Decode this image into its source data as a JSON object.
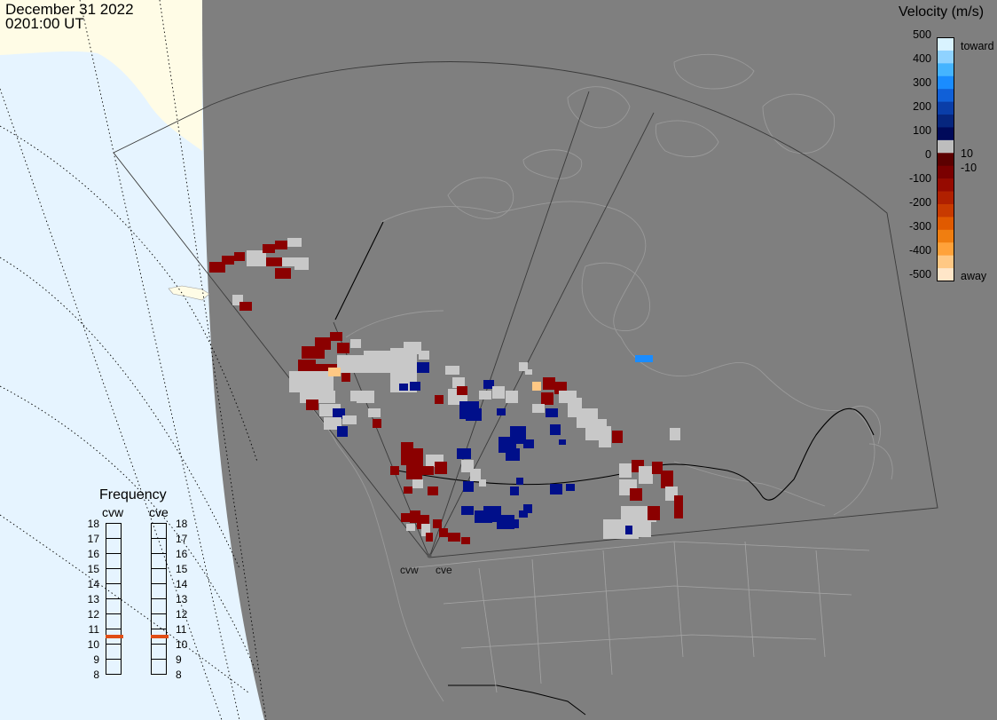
{
  "title": {
    "date": "December 31 2022",
    "time": "0201:00 UT"
  },
  "colorbar": {
    "title": "Velocity (m/s)",
    "labels": [
      "500",
      "400",
      "300",
      "200",
      "100",
      "0",
      "-100",
      "-200",
      "-300",
      "-400",
      "-500"
    ],
    "inner_pos": "10",
    "inner_neg": "-10",
    "end_top": "toward",
    "end_bottom": "away",
    "colors": [
      "#d9f3ff",
      "#8fd2ff",
      "#45b4ff",
      "#1a8cff",
      "#1060d8",
      "#0a3ea8",
      "#06267e",
      "#000a5a",
      "#bdbdbd",
      "#5c0000",
      "#7a0000",
      "#960a00",
      "#b02000",
      "#c83a00",
      "#e05a00",
      "#f07e10",
      "#ffa23a",
      "#ffc884",
      "#ffe6c8"
    ]
  },
  "frequency": {
    "title": "Frequency",
    "radars": [
      "cvw",
      "cve"
    ],
    "ticks": [
      "18",
      "17",
      "16",
      "15",
      "14",
      "13",
      "12",
      "11",
      "10",
      "9",
      "8"
    ],
    "cvw_mhz": 10.5,
    "cve_mhz": 10.5
  },
  "radar_sites": [
    "cvw",
    "cve"
  ],
  "colors": {
    "land_dark": "#7f7f7f",
    "land_light": "#fffce6",
    "ocean": "#e6f4ff",
    "accent_freq": "#e04e14",
    "scatter": "#c8c8c8",
    "away": "#8b0000",
    "toward": "#000f8a"
  }
}
